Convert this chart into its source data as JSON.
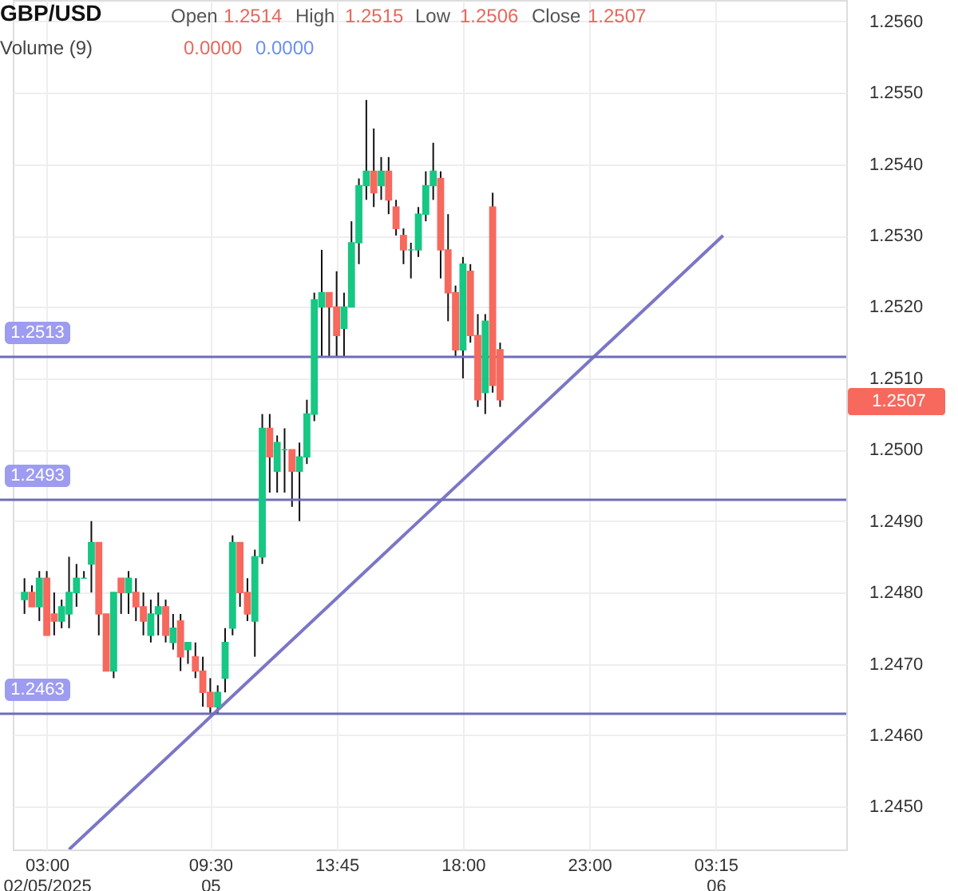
{
  "chart_data": {
    "type": "candlestick",
    "title": "GBP/USD",
    "categories": [
      null,
      null,
      null,
      "03:00\n02/05/2025",
      null,
      null,
      null,
      null,
      null,
      null,
      null,
      null,
      null,
      null,
      null,
      null,
      null,
      null,
      null,
      null,
      null,
      null,
      null,
      null,
      null,
      "09:30\n05",
      null,
      null,
      null,
      null,
      null,
      null,
      null,
      null,
      null,
      null,
      null,
      null,
      null,
      null,
      null,
      null,
      "13:45",
      null,
      null,
      null,
      null,
      null,
      null,
      null,
      null,
      null,
      null,
      null,
      null,
      null,
      null,
      null,
      null,
      "18:00",
      null,
      null,
      null,
      null,
      null,
      null,
      null,
      null,
      null,
      null,
      null,
      null,
      null,
      null,
      null,
      null,
      "23:00",
      null,
      null,
      null,
      null,
      null,
      null,
      null,
      null,
      null,
      null,
      null,
      null,
      null,
      null,
      null,
      null,
      "03:15\n06",
      null,
      null,
      null,
      null,
      null,
      null,
      null,
      null,
      null,
      null,
      null,
      null,
      null,
      null,
      null,
      null
    ],
    "ohlc": [
      [
        1.2479,
        1.2482,
        1.2477,
        1.248
      ],
      [
        1.248,
        1.2481,
        1.2478,
        1.2478
      ],
      [
        1.2478,
        1.2483,
        1.2476,
        1.2482
      ],
      [
        1.2482,
        1.2483,
        1.2474,
        1.2474
      ],
      [
        1.2477,
        1.248,
        1.2474,
        1.2476
      ],
      [
        1.2476,
        1.2479,
        1.2475,
        1.2478
      ],
      [
        1.2477,
        1.2485,
        1.2475,
        1.248
      ],
      [
        1.248,
        1.2484,
        1.2478,
        1.2482
      ],
      [
        1.2482,
        1.2483,
        1.2482,
        1.2482
      ],
      [
        1.2484,
        1.249,
        1.248,
        1.2487
      ],
      [
        1.2487,
        1.2487,
        1.2474,
        1.2477
      ],
      [
        1.2477,
        1.2477,
        1.2469,
        1.2469
      ],
      [
        1.2469,
        1.248,
        1.2468,
        1.248
      ],
      [
        1.2482,
        1.2482,
        1.2477,
        1.248
      ],
      [
        1.248,
        1.2483,
        1.2477,
        1.2482
      ],
      [
        1.248,
        1.2482,
        1.2476,
        1.2478
      ],
      [
        1.2478,
        1.248,
        1.2474,
        1.2476
      ],
      [
        1.2474,
        1.2479,
        1.2473,
        1.2477
      ],
      [
        1.2477,
        1.248,
        1.2474,
        1.2478
      ],
      [
        1.2478,
        1.2479,
        1.2473,
        1.2474
      ],
      [
        1.2473,
        1.2477,
        1.2472,
        1.2475
      ],
      [
        1.2476,
        1.2477,
        1.2469,
        1.2471
      ],
      [
        1.2472,
        1.2473,
        1.247,
        1.2473
      ],
      [
        1.2471,
        1.2473,
        1.2468,
        1.2469
      ],
      [
        1.2469,
        1.2471,
        1.2464,
        1.2466
      ],
      [
        1.2466,
        1.2468,
        1.2463,
        1.2464
      ],
      [
        1.2464,
        1.2467,
        1.2463,
        1.2466
      ],
      [
        1.2468,
        1.2475,
        1.2466,
        1.2473
      ],
      [
        1.2475,
        1.2488,
        1.2474,
        1.2487
      ],
      [
        1.2487,
        1.2487,
        1.2478,
        1.248
      ],
      [
        1.248,
        1.2482,
        1.2476,
        1.2477
      ],
      [
        1.2476,
        1.2486,
        1.2471,
        1.2485
      ],
      [
        1.2485,
        1.2505,
        1.2484,
        1.2503
      ],
      [
        1.2503,
        1.2505,
        1.2494,
        1.2499
      ],
      [
        1.2497,
        1.2502,
        1.2494,
        1.2501
      ],
      [
        1.25,
        1.2503,
        1.2494,
        1.25
      ],
      [
        1.25,
        1.25,
        1.2492,
        1.2497
      ],
      [
        1.2497,
        1.2501,
        1.249,
        1.2499
      ],
      [
        1.2499,
        1.2507,
        1.2498,
        1.2505
      ],
      [
        1.2505,
        1.2522,
        1.2504,
        1.2521
      ],
      [
        1.252,
        1.2528,
        1.2513,
        1.2522
      ],
      [
        1.2522,
        1.2522,
        1.2513,
        1.252
      ],
      [
        1.252,
        1.2525,
        1.2513,
        1.2516
      ],
      [
        1.2517,
        1.2522,
        1.2513,
        1.252
      ],
      [
        1.252,
        1.2532,
        1.252,
        1.2529
      ],
      [
        1.2529,
        1.2538,
        1.2526,
        1.2537
      ],
      [
        1.2537,
        1.2549,
        1.2535,
        1.2539
      ],
      [
        1.2539,
        1.2545,
        1.2534,
        1.2536
      ],
      [
        1.2537,
        1.2541,
        1.2535,
        1.2539
      ],
      [
        1.2539,
        1.2541,
        1.2533,
        1.2535
      ],
      [
        1.2534,
        1.2535,
        1.253,
        1.2531
      ],
      [
        1.253,
        1.2531,
        1.2526,
        1.2528
      ],
      [
        1.2528,
        1.2529,
        1.2524,
        1.2528
      ],
      [
        1.2528,
        1.2534,
        1.2527,
        1.2533
      ],
      [
        1.2533,
        1.2539,
        1.2532,
        1.2537
      ],
      [
        1.2537,
        1.2543,
        1.2535,
        1.2539
      ],
      [
        1.2538,
        1.2539,
        1.2524,
        1.2528
      ],
      [
        1.2528,
        1.2533,
        1.2518,
        1.2522
      ],
      [
        1.2522,
        1.2523,
        1.2513,
        1.2514
      ],
      [
        1.2514,
        1.2527,
        1.251,
        1.2526
      ],
      [
        1.2525,
        1.2526,
        1.2515,
        1.2516
      ],
      [
        1.2516,
        1.2519,
        1.2506,
        1.2507
      ],
      [
        1.2508,
        1.2519,
        1.2505,
        1.2518
      ],
      [
        1.2534,
        1.2536,
        1.2508,
        1.2509
      ],
      [
        1.2514,
        1.2515,
        1.2506,
        1.2507
      ],
      null,
      null,
      null,
      null,
      null,
      null,
      null,
      null,
      null,
      null,
      null,
      null,
      null,
      null,
      null,
      null,
      null,
      null,
      null,
      null,
      null,
      null,
      null,
      null,
      null,
      null,
      null,
      null,
      null,
      null,
      null,
      null,
      null,
      null,
      null,
      null,
      null,
      null,
      null,
      null,
      null,
      null,
      null,
      null,
      null
    ],
    "colors": [
      "#17c784",
      "#f7685d",
      "#17c784",
      "#f7685d",
      "#f7685d",
      "#17c784",
      "#17c784",
      "#17c784",
      "#17c784",
      "#17c784",
      "#f7685d",
      "#f7685d",
      "#17c784",
      "#f7685d",
      "#17c784",
      "#f7685d",
      "#f7685d",
      "#17c784",
      "#17c784",
      "#f7685d",
      "#17c784",
      "#f7685d",
      "#17c784",
      "#f7685d",
      "#f7685d",
      "#f7685d",
      "#17c784",
      "#17c784",
      "#17c784",
      "#f7685d",
      "#f7685d",
      "#17c784",
      "#17c784",
      "#f7685d",
      "#17c784",
      "#17c784",
      "#f7685d",
      "#17c784",
      "#17c784",
      "#17c784",
      "#17c784",
      "#f7685d",
      "#f7685d",
      "#17c784",
      "#17c784",
      "#17c784",
      "#17c784",
      "#f7685d",
      "#17c784",
      "#f7685d",
      "#f7685d",
      "#f7685d",
      "#17c784",
      "#17c784",
      "#17c784",
      "#17c784",
      "#f7685d",
      "#f7685d",
      "#f7685d",
      "#17c784",
      "#f7685d",
      "#f7685d",
      "#17c784",
      "#f7685d",
      "#f7685d",
      null,
      null,
      null,
      null,
      null,
      null,
      null,
      null,
      null,
      null,
      null,
      null,
      null,
      null,
      null,
      null,
      null,
      null,
      null,
      null,
      null,
      null,
      null,
      null,
      null,
      null,
      null,
      null,
      null,
      null,
      null,
      null,
      null,
      null,
      null,
      null,
      null,
      null,
      null,
      null,
      null,
      null,
      null,
      null,
      null
    ],
    "series": [
      {
        "type": "line",
        "color": "#7b76c6",
        "values": [
          null,
          null,
          null,
          null,
          null,
          null,
          1.2444,
          null,
          null,
          null,
          null,
          null,
          null,
          null,
          null,
          null,
          null,
          null,
          null,
          null,
          null,
          null,
          null,
          null,
          null,
          null,
          null,
          null,
          null,
          null,
          null,
          null,
          null,
          null,
          null,
          null,
          null,
          null,
          null,
          null,
          null,
          null,
          null,
          null,
          null,
          null,
          null,
          null,
          null,
          null,
          null,
          null,
          null,
          null,
          null,
          null,
          null,
          null,
          null,
          null,
          null,
          null,
          null,
          null,
          null,
          null,
          null,
          null,
          null,
          null,
          null,
          null,
          null,
          null,
          null,
          null,
          null,
          null,
          null,
          null,
          null,
          null,
          null,
          null,
          null,
          null,
          null,
          null,
          null,
          null,
          null,
          null,
          null,
          null,
          1.253,
          null,
          null,
          null,
          null,
          null,
          null,
          null,
          null,
          null,
          null,
          null,
          null,
          null,
          null,
          null
        ]
      }
    ],
    "ylim": [
      1.2444,
      1.2563
    ],
    "yticks": [
      {
        "value": 1.245,
        "label": "1.2450"
      },
      {
        "value": 1.246,
        "label": "1.2460"
      },
      {
        "value": 1.247,
        "label": "1.2470"
      },
      {
        "value": 1.248,
        "label": "1.2480"
      },
      {
        "value": 1.249,
        "label": "1.2490"
      },
      {
        "value": 1.25,
        "label": "1.2500"
      },
      {
        "value": 1.251,
        "label": "1.2510"
      },
      {
        "value": 1.252,
        "label": "1.2520"
      },
      {
        "value": 1.253,
        "label": "1.2530"
      },
      {
        "value": 1.254,
        "label": "1.2540"
      },
      {
        "value": 1.255,
        "label": "1.2550"
      },
      {
        "value": 1.256,
        "label": "1.2560"
      }
    ],
    "ref_lines": [
      {
        "axis": "y",
        "value": 1.2513,
        "label": "1.2513",
        "color": "#6f6cb9"
      },
      {
        "axis": "y",
        "value": 1.2493,
        "label": "1.2493",
        "color": "#6f6cb9"
      },
      {
        "axis": "y",
        "value": 1.2463,
        "label": "1.2463",
        "color": "#6f6cb9"
      }
    ],
    "annotations": [
      "Open",
      "1.2514",
      "High",
      "1.2515",
      "Low",
      "1.2506",
      "Close",
      "1.2507",
      "Volume (9)",
      "0.0000",
      "0.0000",
      "1.2507"
    ],
    "grid": true
  }
}
